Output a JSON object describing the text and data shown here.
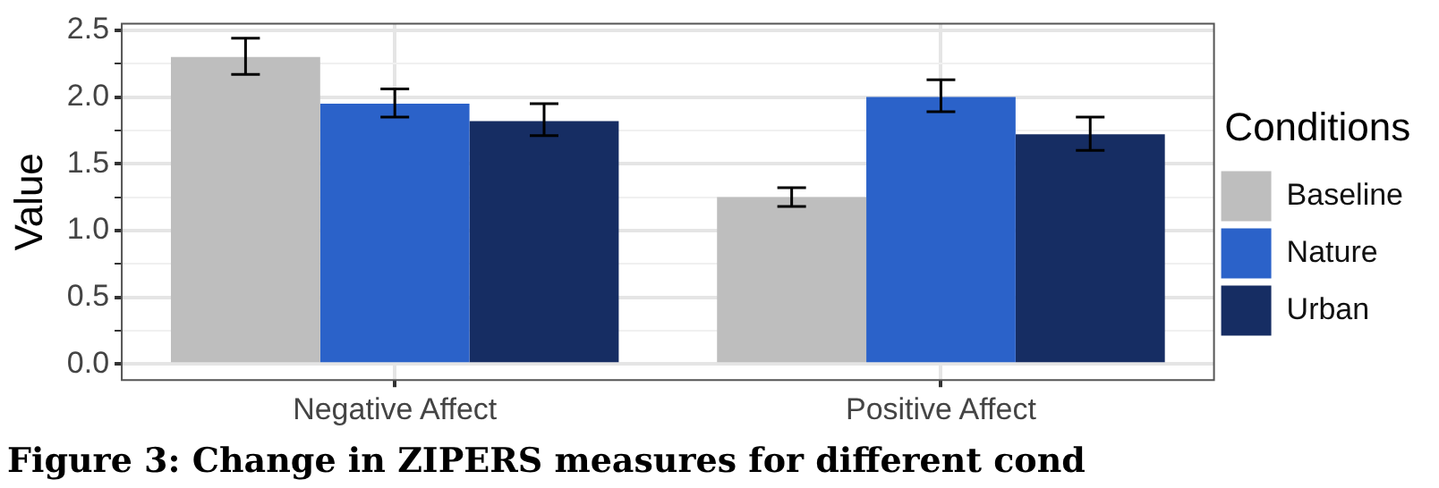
{
  "chart_data": {
    "type": "bar",
    "ylabel": "Value",
    "legend_title": "Conditions",
    "legend": "right",
    "grid": true,
    "categories": [
      "Negative Affect",
      "Positive Affect"
    ],
    "series": [
      {
        "name": "Baseline",
        "color": "#bebebe",
        "values": [
          2.3,
          1.25
        ],
        "errors": [
          [
            2.17,
            2.44
          ],
          [
            1.18,
            1.32
          ]
        ]
      },
      {
        "name": "Nature",
        "color": "#2b62c9",
        "values": [
          1.95,
          2.0
        ],
        "errors": [
          [
            1.85,
            2.06
          ],
          [
            1.89,
            2.13
          ]
        ]
      },
      {
        "name": "Urban",
        "color": "#162d63",
        "values": [
          1.82,
          1.72
        ],
        "errors": [
          [
            1.71,
            1.95
          ],
          [
            1.6,
            1.85
          ]
        ]
      }
    ],
    "ylim": [
      -0.12,
      2.55
    ],
    "yticks": [
      {
        "value": 0,
        "label": "0.0"
      },
      {
        "value": 0.25,
        "label": null
      },
      {
        "value": 0.5,
        "label": "0.5"
      },
      {
        "value": 0.75,
        "label": null
      },
      {
        "value": 1,
        "label": "1.0"
      },
      {
        "value": 1.25,
        "label": null
      },
      {
        "value": 1.5,
        "label": "1.5"
      },
      {
        "value": 1.75,
        "label": null
      },
      {
        "value": 2,
        "label": "2.0"
      },
      {
        "value": 2.25,
        "label": null
      },
      {
        "value": 2.5,
        "label": "2.5"
      }
    ],
    "annotations": [
      "Figure 3: Change in ZIPERS measures for different cond"
    ]
  }
}
